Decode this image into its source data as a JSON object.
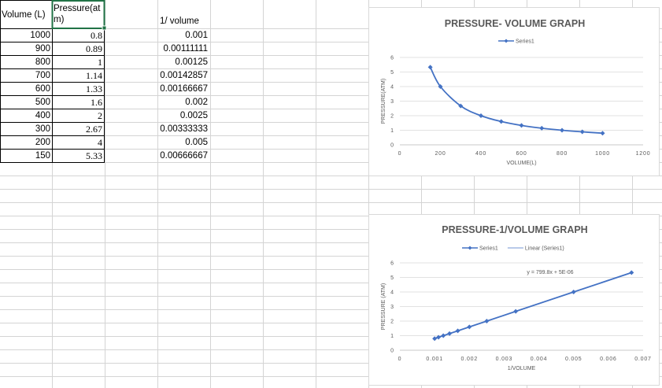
{
  "sheet": {
    "headers": {
      "volume": "Volume (L)",
      "pressure_line1": "Pressure(at",
      "pressure_line2": "m)",
      "inv_volume": "1/ volume"
    },
    "volume": [
      "1000",
      "900",
      "800",
      "700",
      "600",
      "500",
      "400",
      "300",
      "200",
      "150"
    ],
    "pressure": [
      "0.8",
      "0.89",
      "1",
      "1.14",
      "1.33",
      "1.6",
      "2",
      "2.67",
      "4",
      "5.33"
    ],
    "inv_volume": [
      "0.001",
      "0.00111111",
      "0.00125",
      "0.00142857",
      "0.00166667",
      "0.002",
      "0.0025",
      "0.00333333",
      "0.005",
      "0.00666667"
    ],
    "colors": {
      "selection": "#217346",
      "grid": "#d4d4d4",
      "series": "#4472c4"
    }
  },
  "chart_data": [
    {
      "type": "scatter",
      "title": "PRESSURE- VOLUME GRAPH",
      "xlabel": "VOLUME(L)",
      "ylabel": "PRESSURE(ATM)",
      "xlim": [
        0,
        1200
      ],
      "ylim": [
        0,
        6
      ],
      "xticks": [
        "0",
        "200",
        "400",
        "600",
        "800",
        "1000",
        "1200"
      ],
      "yticks": [
        "0",
        "1",
        "2",
        "3",
        "4",
        "5",
        "6"
      ],
      "legend": [
        "Series1"
      ],
      "legend_position": "top",
      "grid": true,
      "line": "smooth",
      "series": [
        {
          "name": "Series1",
          "x": [
            1000,
            900,
            800,
            700,
            600,
            500,
            400,
            300,
            200,
            150
          ],
          "y": [
            0.8,
            0.89,
            1,
            1.14,
            1.33,
            1.6,
            2,
            2.67,
            4,
            5.33
          ]
        }
      ]
    },
    {
      "type": "scatter",
      "title": "PRESSURE-1/VOLUME GRAPH",
      "xlabel": "1/VOLUME",
      "ylabel": "PRESSURE (ATM)",
      "xlim": [
        0,
        0.007
      ],
      "ylim": [
        0,
        6
      ],
      "xticks": [
        "0",
        "0.001",
        "0.002",
        "0.003",
        "0.004",
        "0.005",
        "0.006",
        "0.007"
      ],
      "yticks": [
        "0",
        "1",
        "2",
        "3",
        "4",
        "5",
        "6"
      ],
      "legend": [
        "Series1",
        "Linear (Series1)"
      ],
      "legend_position": "top",
      "grid": true,
      "line": "straight",
      "trendline_equation": "y = 799.8x + 5E-06",
      "series": [
        {
          "name": "Series1",
          "x": [
            0.001,
            0.00111111,
            0.00125,
            0.00142857,
            0.00166667,
            0.002,
            0.0025,
            0.00333333,
            0.005,
            0.00666667
          ],
          "y": [
            0.8,
            0.89,
            1,
            1.14,
            1.33,
            1.6,
            2,
            2.67,
            4,
            5.33
          ]
        }
      ]
    }
  ]
}
